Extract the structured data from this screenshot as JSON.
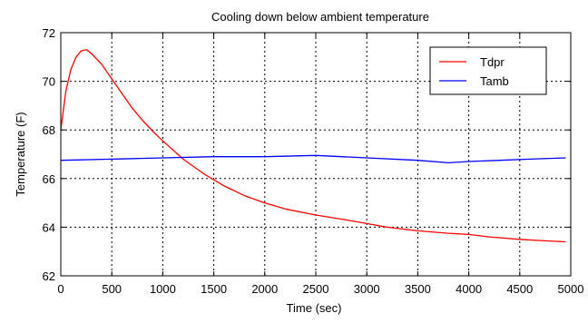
{
  "chart_data": {
    "type": "line",
    "title": "Cooling down below ambient temperature",
    "xlabel": "Time (sec)",
    "ylabel": "Temperature (F)",
    "xlim": [
      0,
      5000
    ],
    "ylim": [
      62,
      72
    ],
    "xticks": [
      0,
      500,
      1000,
      1500,
      2000,
      2500,
      3000,
      3500,
      4000,
      4500,
      5000
    ],
    "yticks": [
      62,
      64,
      66,
      68,
      70,
      72
    ],
    "grid": true,
    "legend_position": "top-right",
    "series": [
      {
        "name": "Tdpr",
        "color": "#ff0000",
        "x": [
          0,
          50,
          100,
          150,
          200,
          250,
          300,
          400,
          500,
          600,
          700,
          800,
          900,
          1000,
          1200,
          1400,
          1600,
          1800,
          2000,
          2200,
          2500,
          2800,
          3000,
          3200,
          3500,
          3800,
          4000,
          4200,
          4500,
          4700,
          4950
        ],
        "y": [
          68.0,
          69.6,
          70.5,
          71.0,
          71.25,
          71.3,
          71.15,
          70.7,
          70.1,
          69.5,
          68.9,
          68.4,
          67.95,
          67.55,
          66.8,
          66.2,
          65.7,
          65.3,
          65.0,
          64.75,
          64.5,
          64.3,
          64.15,
          64.0,
          63.85,
          63.75,
          63.7,
          63.6,
          63.5,
          63.45,
          63.4
        ]
      },
      {
        "name": "Tamb",
        "color": "#0000ff",
        "x": [
          0,
          500,
          1000,
          1500,
          2000,
          2500,
          3000,
          3500,
          3800,
          4000,
          4300,
          4600,
          4950
        ],
        "y": [
          66.75,
          66.8,
          66.85,
          66.9,
          66.9,
          66.95,
          66.85,
          66.75,
          66.65,
          66.7,
          66.75,
          66.8,
          66.85
        ]
      }
    ]
  }
}
